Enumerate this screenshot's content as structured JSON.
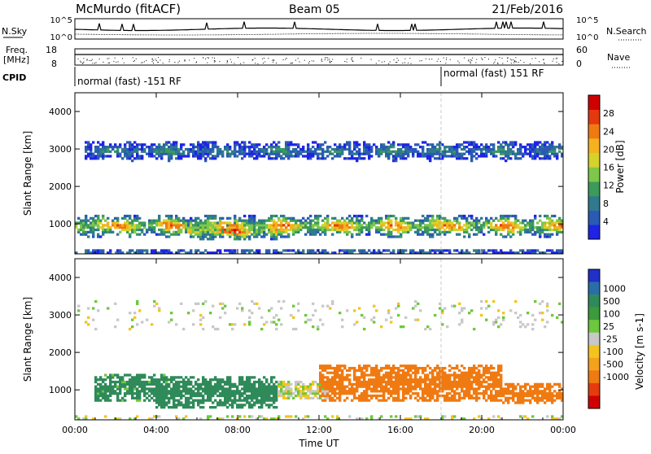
{
  "header": {
    "station": "McMurdo (fitACF)",
    "beam": "Beam 05",
    "date": "21/Feb/2016"
  },
  "noise_panel": {
    "left_label": "N.Sky",
    "right_label": "N.Search",
    "left_ticks": [
      "10^5",
      "10^0"
    ],
    "right_ticks": [
      "10^5",
      "10^0"
    ]
  },
  "freq_panel": {
    "left_label_1": "Freq.",
    "left_label_2": "[MHz]",
    "right_label": "Nave",
    "left_ticks": [
      "18",
      "8"
    ],
    "right_ticks": [
      "60",
      "0"
    ]
  },
  "cpid_panel": {
    "label": "CPID",
    "segments": [
      {
        "label": "normal (fast) -151 RF",
        "start_hour": 0,
        "end_hour": 18
      },
      {
        "label": "normal (fast) 151 RF",
        "start_hour": 18,
        "end_hour": 24
      }
    ]
  },
  "chart_data": [
    {
      "type": "heatmap",
      "name": "power",
      "ylabel": "Slant Range [km]",
      "xlim": [
        0,
        24
      ],
      "ylim": [
        200,
        4500
      ],
      "yticks": [
        "1000",
        "2000",
        "3000",
        "4000"
      ],
      "xticks": [
        "00:00",
        "04:00",
        "08:00",
        "12:00",
        "16:00",
        "20:00",
        "00:00"
      ],
      "colorbar": {
        "label": "Power [dB]",
        "range": [
          0,
          32
        ],
        "ticks": [
          "4",
          "8",
          "12",
          "16",
          "20",
          "24",
          "28"
        ],
        "colors": [
          "#1e23e6",
          "#2a5ab4",
          "#2f7a8c",
          "#3c9a5a",
          "#7ec74a",
          "#d6d22c",
          "#f4b21e",
          "#f07a12",
          "#e4380e",
          "#d00000"
        ]
      },
      "bands": [
        {
          "start_hour": 0.0,
          "end_hour": 24.0,
          "center_km": 950,
          "half_width_km": 260,
          "peak_db": 26
        },
        {
          "start_hour": 5.5,
          "end_hour": 10.0,
          "center_km": 820,
          "half_width_km": 220,
          "peak_db": 30
        },
        {
          "start_hour": 0.5,
          "end_hour": 24.0,
          "center_km": 2950,
          "half_width_km": 220,
          "peak_db": 10
        },
        {
          "start_hour": 0.0,
          "end_hour": 24.0,
          "center_km": 260,
          "half_width_km": 60,
          "peak_db": 10
        }
      ]
    },
    {
      "type": "heatmap",
      "name": "velocity",
      "ylabel": "Slant Range [km]",
      "xlabel": "Time UT",
      "xlim": [
        0,
        24
      ],
      "ylim": [
        200,
        4500
      ],
      "yticks": [
        "1000",
        "2000",
        "3000",
        "4000"
      ],
      "xticks": [
        "00:00",
        "04:00",
        "08:00",
        "12:00",
        "16:00",
        "20:00",
        "00:00"
      ],
      "colorbar": {
        "label": "Velocity [m s-1]",
        "ticks": [
          "1000",
          "500",
          "100",
          "25",
          "-25",
          "-100",
          "-500",
          "-1000"
        ],
        "colors": [
          "#2030c8",
          "#2a6ea8",
          "#2f8a5a",
          "#3c9a3c",
          "#6cc83c",
          "#c8c8c8",
          "#f4c41e",
          "#f4a21e",
          "#f07a12",
          "#e43c0e",
          "#d00000"
        ]
      },
      "bands": [
        {
          "start_hour": 1.0,
          "end_hour": 4.5,
          "center_km": 1050,
          "half_width_km": 350,
          "velocity": 150
        },
        {
          "start_hour": 4.0,
          "end_hour": 10.0,
          "center_km": 950,
          "half_width_km": 420,
          "velocity": 300
        },
        {
          "start_hour": 10.0,
          "end_hour": 12.5,
          "center_km": 1000,
          "half_width_km": 250,
          "velocity": 0
        },
        {
          "start_hour": 12.0,
          "end_hour": 21.0,
          "center_km": 1200,
          "half_width_km": 500,
          "velocity": -300
        },
        {
          "start_hour": 21.0,
          "end_hour": 24.0,
          "center_km": 900,
          "half_width_km": 300,
          "velocity": -400
        }
      ]
    }
  ],
  "colors": {
    "background": "#ffffff",
    "axis": "#000000",
    "marker_line": "#c8c8c8"
  }
}
